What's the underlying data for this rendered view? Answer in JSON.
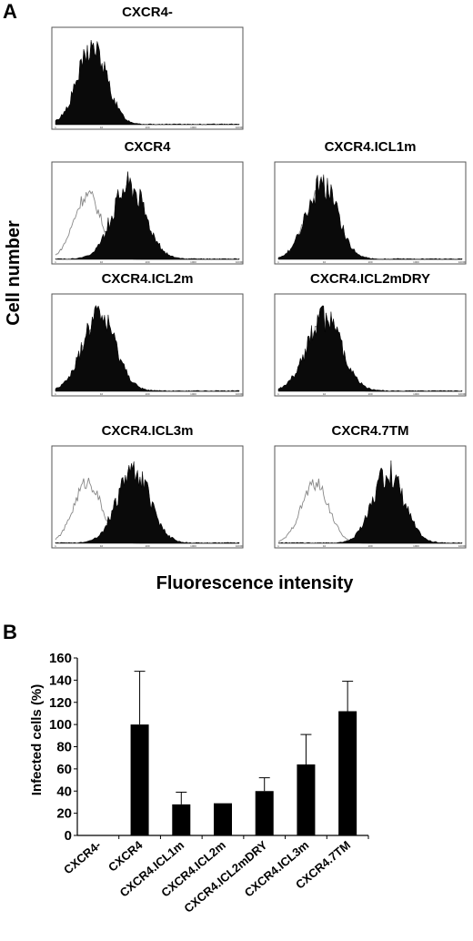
{
  "panel_a_label": "A",
  "panel_b_label": "B",
  "chart_data": [
    {
      "type": "histogram",
      "panel": "A",
      "ylabel": "Cell number",
      "xlabel": "Fluorescence intensity",
      "x_scale": "log",
      "x_ticks": [
        "1",
        "10",
        "100",
        "1000",
        "10000"
      ],
      "plots": [
        {
          "title": "CXCR4-",
          "filled_peak_log": 0.8,
          "filled_width": 0.32,
          "filled_height": 0.82,
          "open_peak_log": null
        },
        {
          "title": "CXCR4",
          "filled_peak_log": 1.6,
          "filled_width": 0.36,
          "filled_height": 0.82,
          "open_peak_log": 0.7
        },
        {
          "title": "CXCR4.ICL1m",
          "filled_peak_log": 0.95,
          "filled_width": 0.34,
          "filled_height": 0.8,
          "open_peak_log": 0.85
        },
        {
          "title": "CXCR4.ICL2m",
          "filled_peak_log": 0.95,
          "filled_width": 0.36,
          "filled_height": 0.8,
          "open_peak_log": 0.85
        },
        {
          "title": "CXCR4.ICL2mDRY",
          "filled_peak_log": 1.0,
          "filled_width": 0.38,
          "filled_height": 0.78,
          "open_peak_log": 0.9
        },
        {
          "title": "CXCR4.ICL3m",
          "filled_peak_log": 1.7,
          "filled_width": 0.36,
          "filled_height": 0.78,
          "open_peak_log": 0.7
        },
        {
          "title": "CXCR4.7TM",
          "filled_peak_log": 2.4,
          "filled_width": 0.34,
          "filled_height": 0.76,
          "open_peak_log": 0.8
        }
      ]
    },
    {
      "type": "bar",
      "panel": "B",
      "ylabel": "Infected cells (%)",
      "xlabel": "",
      "categories": [
        "CXCR4-",
        "CXCR4",
        "CXCR4.ICL1m",
        "CXCR4.ICL2m",
        "CXCR4.ICL2mDRY",
        "CXCR4.ICL3m",
        "CXCR4.7TM"
      ],
      "values": [
        0,
        100,
        28,
        29,
        40,
        64,
        112
      ],
      "errors": [
        0,
        48,
        11,
        0,
        12,
        27,
        27
      ],
      "ylim": [
        0,
        160
      ],
      "yticks": [
        0,
        20,
        40,
        60,
        80,
        100,
        120,
        140,
        160
      ],
      "grid": false,
      "bar_color": "#000000"
    }
  ]
}
